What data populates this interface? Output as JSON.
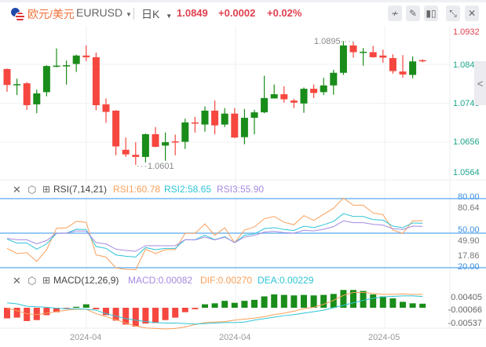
{
  "header": {
    "pair_cn": "欧元/美元",
    "symbol": "EURUSD",
    "period": "日K",
    "price": "1.0849",
    "change": "+0.0002",
    "change_pct": "+0.02%",
    "buttons": [
      {
        "name": "indicator-icon",
        "glyph": "≁"
      },
      {
        "name": "draw-pencil-icon",
        "glyph": "✎"
      },
      {
        "name": "candle-type-icon",
        "glyph": "▮▯"
      },
      {
        "name": "collapse-icon",
        "glyph": "⤡"
      },
      {
        "name": "close-icon",
        "glyph": "✕"
      }
    ]
  },
  "colors": {
    "up": "#1a8c1a",
    "down": "#f5473f",
    "accent": "#f0723a",
    "price_red": "#e0404f",
    "axis_teal": "#1fa48a",
    "level_line": "#5aa9f0",
    "rsi1": "#f9a05a",
    "rsi2": "#2ec4d6",
    "rsi3": "#a58be0"
  },
  "main": {
    "y_labels": [
      "1.0932",
      "1.0840",
      "1.0748",
      "1.0656",
      "1.0564"
    ],
    "high_annotation": "1.0895",
    "low_annotation": "1.0601",
    "candles": [
      [
        1.0829,
        1.083,
        1.0775,
        1.0791
      ],
      [
        1.0791,
        1.0806,
        1.0767,
        1.0793
      ],
      [
        1.0795,
        1.0798,
        1.0732,
        1.0743
      ],
      [
        1.0745,
        1.078,
        1.0724,
        1.0771
      ],
      [
        1.0774,
        1.0838,
        1.0764,
        1.0836
      ],
      [
        1.0836,
        1.0878,
        1.0833,
        1.0837
      ],
      [
        1.0837,
        1.0849,
        1.0792,
        1.0838
      ],
      [
        1.0841,
        1.0863,
        1.0822,
        1.0861
      ],
      [
        1.0861,
        1.0885,
        1.0848,
        1.0857
      ],
      [
        1.0857,
        1.0868,
        1.0731,
        1.0743
      ],
      [
        1.0745,
        1.0759,
        1.0701,
        1.0727
      ],
      [
        1.073,
        1.0731,
        1.0624,
        1.0645
      ],
      [
        1.0637,
        1.0666,
        1.062,
        1.0626
      ],
      [
        1.0625,
        1.0655,
        1.0601,
        1.062
      ],
      [
        1.062,
        1.0676,
        1.0607,
        1.0674
      ],
      [
        1.0674,
        1.0691,
        1.0643,
        1.0644
      ],
      [
        1.0647,
        1.0678,
        1.0611,
        1.0655
      ],
      [
        1.0657,
        1.0673,
        1.0624,
        1.0656
      ],
      [
        1.0656,
        1.0711,
        1.0639,
        1.0702
      ],
      [
        1.0702,
        1.0715,
        1.0678,
        1.0701
      ],
      [
        1.0697,
        1.074,
        1.068,
        1.073
      ],
      [
        1.073,
        1.0754,
        1.0674,
        1.0695
      ],
      [
        1.0697,
        1.0736,
        1.0691,
        1.0723
      ],
      [
        1.0723,
        1.0736,
        1.0665,
        1.0666
      ],
      [
        1.0667,
        1.0734,
        1.065,
        1.0713
      ],
      [
        1.0713,
        1.0732,
        1.0674,
        1.0726
      ],
      [
        1.0726,
        1.0813,
        1.0724,
        1.076
      ],
      [
        1.0759,
        1.0792,
        1.0759,
        1.0769
      ],
      [
        1.0769,
        1.0788,
        1.0749,
        1.0757
      ],
      [
        1.0754,
        1.0758,
        1.0736,
        1.0749
      ],
      [
        1.0747,
        1.0785,
        1.0725,
        1.0782
      ],
      [
        1.0782,
        1.0792,
        1.076,
        1.0772
      ],
      [
        1.0774,
        1.0808,
        1.0767,
        1.079
      ],
      [
        1.079,
        1.0827,
        1.0768,
        1.082
      ],
      [
        1.082,
        1.0895,
        1.0815,
        1.0885
      ],
      [
        1.0885,
        1.0893,
        1.0856,
        1.0869
      ],
      [
        1.0869,
        1.0879,
        1.0837,
        1.087
      ],
      [
        1.0869,
        1.0884,
        1.0856,
        1.0857
      ],
      [
        1.0861,
        1.0875,
        1.0844,
        1.0856
      ],
      [
        1.0855,
        1.0864,
        1.0818,
        1.0824
      ],
      [
        1.0823,
        1.0862,
        1.0808,
        1.0816
      ],
      [
        1.0815,
        1.0859,
        1.0807,
        1.0847
      ],
      [
        1.085,
        1.0852,
        1.0845,
        1.0849
      ]
    ]
  },
  "rsi": {
    "title": "RSI(7,14,21)",
    "rsi1_label": "RSI1:60.78",
    "rsi2_label": "RSI2:58.65",
    "rsi3_label": "RSI3:55.90",
    "axis_labels": {
      "l80": "80.00",
      "max": "80.64",
      "l50": "50.00",
      "mid": "49.90",
      "min": "17.86",
      "l20": "20.00"
    },
    "levels": [
      80,
      50,
      20
    ],
    "rsi1": [
      36.8,
      32.3,
      33.0,
      25.4,
      35.7,
      54.3,
      54.6,
      60.2,
      59.5,
      31.1,
      29.3,
      19.8,
      18.6,
      18.2,
      36.1,
      32.3,
      35.7,
      35.7,
      49.8,
      49.8,
      58.0,
      48.2,
      54.6,
      41.8,
      52.7,
      55.4,
      62.5,
      64.5,
      59.5,
      57.3,
      65.2,
      61.1,
      66.4,
      71.6,
      80.5,
      74.3,
      74.3,
      67.5,
      66.1,
      52.7,
      49.8,
      60.7,
      60.78
    ],
    "rsi2": [
      44.8,
      41.4,
      41.4,
      36.1,
      40.7,
      49.8,
      50.0,
      53.4,
      53.2,
      38.4,
      36.8,
      31.1,
      30.0,
      29.3,
      37.5,
      35.7,
      36.8,
      36.8,
      44.3,
      44.3,
      48.2,
      44.3,
      47.0,
      41.8,
      48.2,
      49.3,
      53.9,
      54.8,
      53.2,
      52.3,
      56.1,
      54.8,
      57.3,
      60.2,
      67.0,
      64.5,
      64.5,
      61.8,
      61.3,
      56.1,
      54.8,
      58.9,
      58.65
    ],
    "rsi3": [
      45.5,
      44.3,
      44.3,
      40.7,
      43.6,
      50.0,
      50.0,
      52.0,
      51.8,
      41.8,
      40.7,
      36.1,
      35.0,
      34.3,
      39.1,
      39.1,
      39.1,
      39.1,
      44.3,
      44.1,
      46.6,
      44.1,
      46.6,
      41.8,
      46.6,
      48.0,
      50.9,
      51.6,
      50.5,
      50.0,
      52.5,
      52.0,
      53.4,
      55.6,
      60.7,
      59.1,
      59.1,
      57.7,
      57.0,
      53.9,
      53.2,
      56.1,
      55.9
    ]
  },
  "macd": {
    "title": "MACD(12,26,9)",
    "macd_label": "MACD:0.00082",
    "dif_label": "DIF:0.00270",
    "dea_label": "DEA:0.00229",
    "axis_labels": [
      "0.00405",
      "-0.00066",
      "-0.00537"
    ],
    "hist": [
      -0.00215,
      -0.002,
      -0.0027,
      -0.0025,
      -0.0015,
      -0.0009,
      -0.0002,
      0.0002,
      0.0007,
      -0.0003,
      -0.0015,
      -0.0026,
      -0.0034,
      -0.0038,
      -0.0032,
      -0.0031,
      -0.0025,
      -0.002,
      -0.0009,
      -0.0003,
      0.0007,
      0.0009,
      0.0014,
      0.001,
      0.0014,
      0.0016,
      0.0023,
      0.0027,
      0.0026,
      0.0025,
      0.0026,
      0.0025,
      0.0026,
      0.0028,
      0.0036,
      0.0036,
      0.0034,
      0.0027,
      0.0023,
      0.0019,
      0.0012,
      0.0009,
      0.00082
    ],
    "dif": [
      -0.0001,
      -0.0006,
      -0.0012,
      -0.0014,
      -0.0011,
      -0.0008,
      -0.0005,
      -0.0003,
      -0.0003,
      -0.0012,
      -0.0018,
      -0.0024,
      -0.0031,
      -0.0037,
      -0.0041,
      -0.0042,
      -0.0043,
      -0.0042,
      -0.0039,
      -0.0034,
      -0.003,
      -0.0029,
      -0.0028,
      -0.0025,
      -0.0023,
      -0.0021,
      -0.0018,
      -0.0014,
      -0.0011,
      -0.0007,
      -0.0002,
      0.0001,
      0.0007,
      0.0015,
      0.0025,
      0.0031,
      0.0031,
      0.0029,
      0.0027,
      0.0027,
      0.0028,
      0.0027,
      0.0027
    ],
    "dea": [
      0.001,
      0.0008,
      0.0003,
      0.0002,
      0.0001,
      -0.0001,
      -0.0002,
      -0.0002,
      -0.0003,
      -0.0005,
      -0.0012,
      -0.0017,
      -0.0022,
      -0.0025,
      -0.0028,
      -0.003,
      -0.0031,
      -0.0031,
      -0.0032,
      -0.0033,
      -0.0032,
      -0.0031,
      -0.003,
      -0.003,
      -0.0029,
      -0.0025,
      -0.0022,
      -0.0019,
      -0.0016,
      -0.0014,
      -0.0011,
      -0.0008,
      -0.0005,
      0.0,
      0.0005,
      0.001,
      0.0015,
      0.0019,
      0.0022,
      0.0023,
      0.0024,
      0.0024,
      0.00229
    ]
  },
  "x_labels": [
    "2024-04",
    "2024-04",
    "2024-05"
  ],
  "collapse_glyph": "<"
}
